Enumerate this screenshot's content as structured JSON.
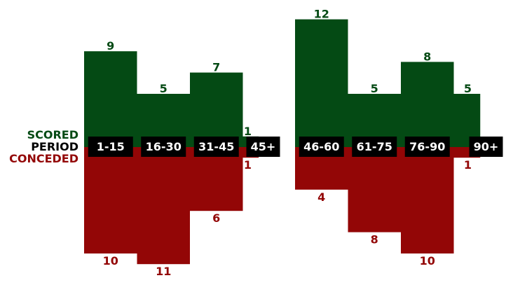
{
  "chart_data": {
    "type": "bar",
    "legend": {
      "scored_label": "SCORED",
      "period_label": "PERIOD",
      "conceded_label": "CONCEDED"
    },
    "colors": {
      "scored": "#044a14",
      "conceded": "#930606",
      "period_box": "#000000"
    },
    "halves": [
      {
        "categories": [
          "1-15",
          "16-30",
          "31-45",
          "45+"
        ],
        "scored": [
          9,
          5,
          7,
          1
        ],
        "conceded": [
          10,
          11,
          6,
          1
        ]
      },
      {
        "categories": [
          "46-60",
          "61-75",
          "76-90",
          "90+"
        ],
        "scored": [
          12,
          5,
          8,
          5
        ],
        "conceded": [
          4,
          8,
          10,
          1
        ]
      }
    ]
  }
}
